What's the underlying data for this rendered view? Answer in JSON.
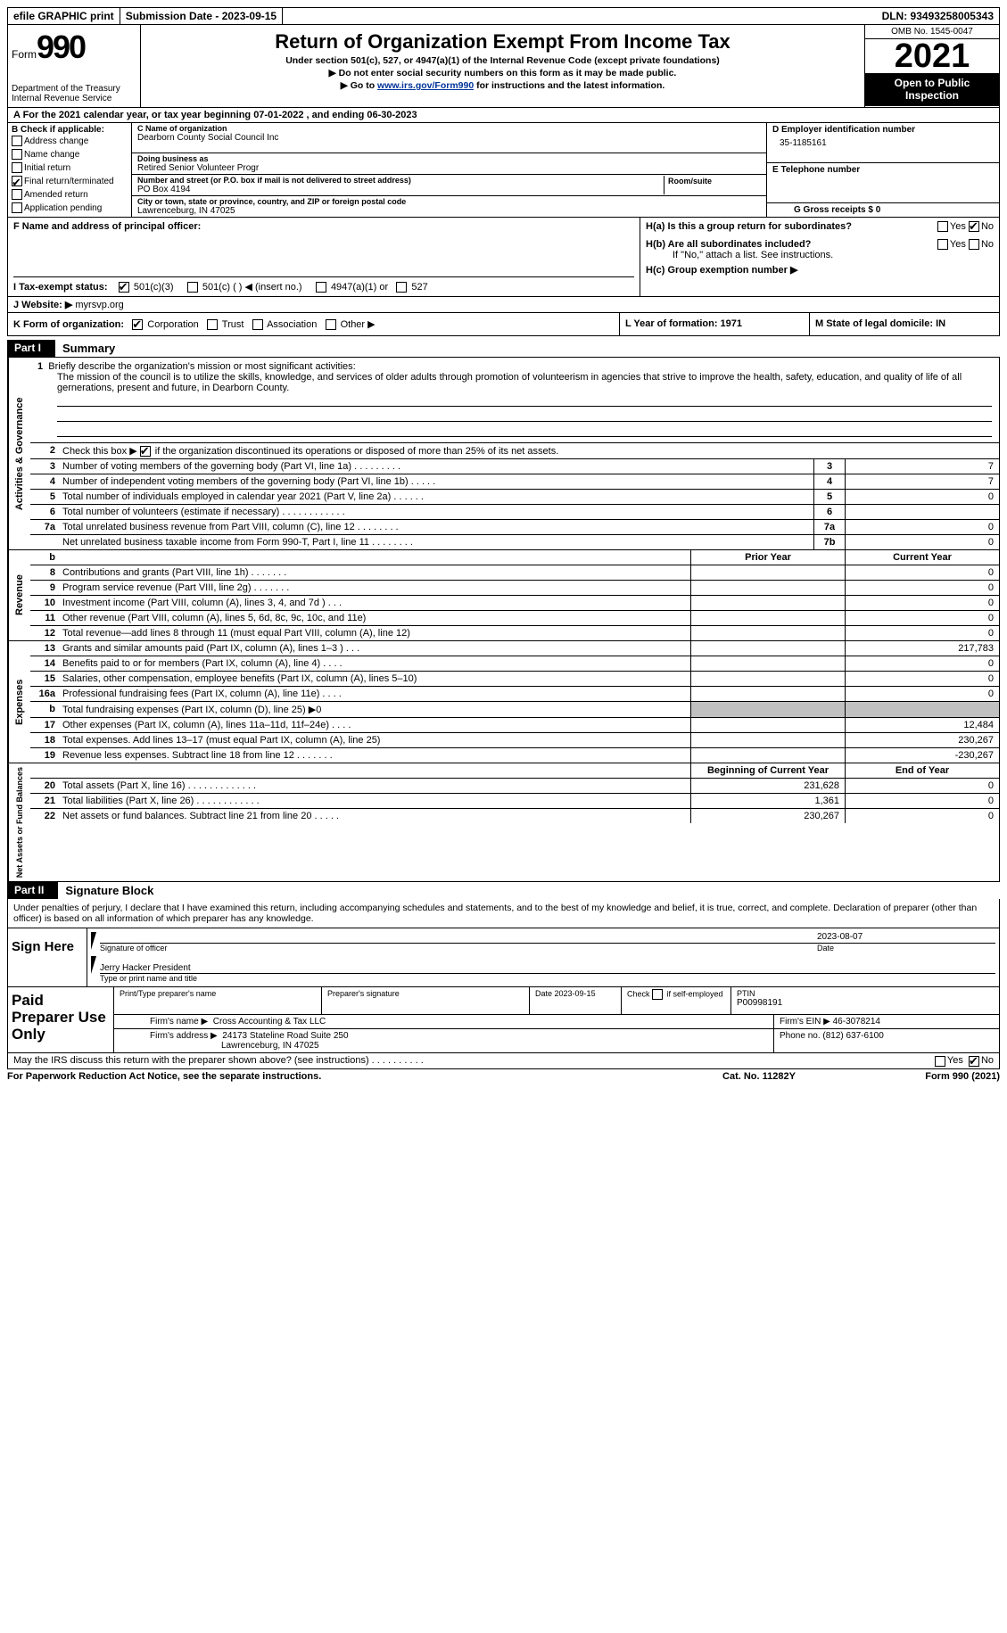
{
  "colors": {
    "black": "#000000",
    "white": "#ffffff",
    "link": "#003399",
    "grey_fill": "#c0c0c0"
  },
  "top_bar": {
    "efile": "efile GRAPHIC print",
    "submission": "Submission Date - 2023-09-15",
    "dln": "DLN: 93493258005343"
  },
  "header": {
    "form_label": "Form",
    "form_number": "990",
    "dept": "Department of the Treasury Internal Revenue Service",
    "title": "Return of Organization Exempt From Income Tax",
    "subtitle": "Under section 501(c), 527, or 4947(a)(1) of the Internal Revenue Code (except private foundations)",
    "note1": "▶ Do not enter social security numbers on this form as it may be made public.",
    "note2_pre": "▶ Go to ",
    "note2_link": "www.irs.gov/Form990",
    "note2_post": " for instructions and the latest information.",
    "omb": "OMB No. 1545-0047",
    "year": "2021",
    "inspection": "Open to Public Inspection"
  },
  "row_a": "A For the 2021 calendar year, or tax year beginning 07-01-2022   , and ending 06-30-2023",
  "section_b": {
    "label": "B Check if applicable:",
    "items": [
      {
        "checked": false,
        "text": "Address change"
      },
      {
        "checked": false,
        "text": "Name change"
      },
      {
        "checked": false,
        "text": "Initial return"
      },
      {
        "checked": true,
        "text": "Final return/terminated"
      },
      {
        "checked": false,
        "text": "Amended return"
      },
      {
        "checked": false,
        "text": "Application pending"
      }
    ]
  },
  "section_c": {
    "name_label": "C Name of organization",
    "name": "Dearborn County Social Council Inc",
    "dba_label": "Doing business as",
    "dba": "Retired Senior Volunteer Progr",
    "street_label": "Number and street (or P.O. box if mail is not delivered to street address)",
    "street": "PO Box 4194",
    "room_label": "Room/suite",
    "city_label": "City or town, state or province, country, and ZIP or foreign postal code",
    "city": "Lawrenceburg, IN  47025"
  },
  "section_d": {
    "ein_label": "D Employer identification number",
    "ein": "35-1185161",
    "phone_label": "E Telephone number",
    "phone": "",
    "gross_label": "G Gross receipts $ 0"
  },
  "section_f": {
    "label": "F  Name and address of principal officer:",
    "value": ""
  },
  "section_h": {
    "ha": "H(a)  Is this a group return for subordinates?",
    "ha_yes": false,
    "ha_no": true,
    "hb": "H(b)  Are all subordinates included?",
    "hb_yes": false,
    "hb_no": false,
    "hb_note": "If \"No,\" attach a list. See instructions.",
    "hc": "H(c)  Group exemption number ▶"
  },
  "section_i": {
    "label": "I  Tax-exempt status:",
    "opts": [
      {
        "checked": true,
        "text": "501(c)(3)"
      },
      {
        "checked": false,
        "text": "501(c) (  ) ◀ (insert no.)"
      },
      {
        "checked": false,
        "text": "4947(a)(1) or"
      },
      {
        "checked": false,
        "text": "527"
      }
    ]
  },
  "section_j": {
    "label": "J  Website: ▶",
    "value": "myrsvp.org"
  },
  "section_k": {
    "label": "K Form of organization:",
    "opts": [
      {
        "checked": true,
        "text": "Corporation"
      },
      {
        "checked": false,
        "text": "Trust"
      },
      {
        "checked": false,
        "text": "Association"
      },
      {
        "checked": false,
        "text": "Other ▶"
      }
    ]
  },
  "section_l": "L Year of formation: 1971",
  "section_m": "M State of legal domicile: IN",
  "part1": {
    "tab": "Part I",
    "title": "Summary"
  },
  "mission": {
    "num": "1",
    "label": "Briefly describe the organization's mission or most significant activities:",
    "text": "The mission of the council is to utilize the skills, knowledge, and services of older adults through promotion of volunteerism in agencies that strive to improve the health, safety, education, and quality of life of all gernerations, present and future, in Dearborn County."
  },
  "line2": {
    "num": "2",
    "text_pre": "Check this box ▶ ",
    "checked": true,
    "text_post": " if the organization discontinued its operations or disposed of more than 25% of its net assets."
  },
  "activities_rows": [
    {
      "n": "3",
      "text": "Number of voting members of the governing body (Part VI, line 1a)  .    .    .    .    .    .    .    .    .",
      "box": "3",
      "val": "7"
    },
    {
      "n": "4",
      "text": "Number of independent voting members of the governing body (Part VI, line 1b)  .    .    .    .    .",
      "box": "4",
      "val": "7"
    },
    {
      "n": "5",
      "text": "Total number of individuals employed in calendar year 2021 (Part V, line 2a)  .    .    .    .    .    .",
      "box": "5",
      "val": "0"
    },
    {
      "n": "6",
      "text": "Total number of volunteers (estimate if necessary)    .    .    .    .    .    .    .    .    .    .    .    .",
      "box": "6",
      "val": ""
    },
    {
      "n": "7a",
      "text": "Total unrelated business revenue from Part VIII, column (C), line 12   .    .    .    .    .    .    .    .",
      "box": "7a",
      "val": "0"
    },
    {
      "n": "",
      "text": "Net unrelated business taxable income from Form 990-T, Part I, line 11  .    .    .    .    .    .    .    .",
      "box": "7b",
      "val": "0"
    }
  ],
  "col_headers": {
    "b": "b",
    "prior": "Prior Year",
    "current": "Current Year"
  },
  "revenue_rows": [
    {
      "n": "8",
      "text": "Contributions and grants (Part VIII, line 1h)   .    .    .    .    .    .    .",
      "prior": "",
      "curr": "0"
    },
    {
      "n": "9",
      "text": "Program service revenue (Part VIII, line 2g)   .    .    .    .    .    .    .",
      "prior": "",
      "curr": "0"
    },
    {
      "n": "10",
      "text": "Investment income (Part VIII, column (A), lines 3, 4, and 7d )   .    .    .",
      "prior": "",
      "curr": "0"
    },
    {
      "n": "11",
      "text": "Other revenue (Part VIII, column (A), lines 5, 6d, 8c, 9c, 10c, and 11e)",
      "prior": "",
      "curr": "0"
    },
    {
      "n": "12",
      "text": "Total revenue—add lines 8 through 11 (must equal Part VIII, column (A), line 12)",
      "prior": "",
      "curr": "0"
    }
  ],
  "expense_rows": [
    {
      "n": "13",
      "text": "Grants and similar amounts paid (Part IX, column (A), lines 1–3 )  .    .    .",
      "prior": "",
      "curr": "217,783"
    },
    {
      "n": "14",
      "text": "Benefits paid to or for members (Part IX, column (A), line 4)  .    .    .    .",
      "prior": "",
      "curr": "0"
    },
    {
      "n": "15",
      "text": "Salaries, other compensation, employee benefits (Part IX, column (A), lines 5–10)",
      "prior": "",
      "curr": "0"
    },
    {
      "n": "16a",
      "text": "Professional fundraising fees (Part IX, column (A), line 11e)    .    .    .    .",
      "prior": "",
      "curr": "0"
    },
    {
      "n": "b",
      "text": "Total fundraising expenses (Part IX, column (D), line 25) ▶0",
      "prior": "grey",
      "curr": "grey"
    },
    {
      "n": "17",
      "text": "Other expenses (Part IX, column (A), lines 11a–11d, 11f–24e)   .    .    .    .",
      "prior": "",
      "curr": "12,484"
    },
    {
      "n": "18",
      "text": "Total expenses. Add lines 13–17 (must equal Part IX, column (A), line 25)",
      "prior": "",
      "curr": "230,267"
    },
    {
      "n": "19",
      "text": "Revenue less expenses. Subtract line 18 from line 12  .    .    .    .    .    .    .",
      "prior": "",
      "curr": "-230,267"
    }
  ],
  "net_headers": {
    "begin": "Beginning of Current Year",
    "end": "End of Year"
  },
  "net_rows": [
    {
      "n": "20",
      "text": "Total assets (Part X, line 16)  .    .    .    .    .    .    .    .    .    .    .    .    .",
      "prior": "231,628",
      "curr": "0"
    },
    {
      "n": "21",
      "text": "Total liabilities (Part X, line 26)  .    .    .    .    .    .    .    .    .    .    .    .",
      "prior": "1,361",
      "curr": "0"
    },
    {
      "n": "22",
      "text": "Net assets or fund balances. Subtract line 21 from line 20   .    .    .    .    .",
      "prior": "230,267",
      "curr": "0"
    }
  ],
  "part2": {
    "tab": "Part II",
    "title": "Signature Block"
  },
  "penalties": "Under penalties of perjury, I declare that I have examined this return, including accompanying schedules and statements, and to the best of my knowledge and belief, it is true, correct, and complete. Declaration of preparer (other than officer) is based on all information of which preparer has any knowledge.",
  "sign": {
    "left": "Sign Here",
    "sig_officer": "Signature of officer",
    "date": "2023-08-07",
    "date_label": "Date",
    "name": "Jerry Hacker President",
    "name_label": "Type or print name and title"
  },
  "paid": {
    "left": "Paid Preparer Use Only",
    "r1": {
      "c1": "Print/Type preparer's name",
      "v1": "",
      "c2": "Preparer's signature",
      "v2": "",
      "c3": "Date",
      "v3": "2023-09-15",
      "c4_pre": "Check ",
      "c4_post": " if self-employed",
      "c4_checked": false,
      "c5": "PTIN",
      "v5": "P00998191"
    },
    "r2": {
      "label": "Firm's name    ▶",
      "value": "Cross Accounting & Tax LLC",
      "ein_label": "Firm's EIN ▶",
      "ein": "46-3078214"
    },
    "r3": {
      "label": "Firm's address ▶",
      "value1": "24173 Stateline Road Suite 250",
      "value2": "Lawrenceburg, IN  47025",
      "phone_label": "Phone no.",
      "phone": "(812) 637-6100"
    }
  },
  "discuss": {
    "text": "May the IRS discuss this return with the preparer shown above? (see instructions)    .    .    .    .    .    .    .    .    .    .",
    "yes": false,
    "no": true
  },
  "footer": {
    "left": "For Paperwork Reduction Act Notice, see the separate instructions.",
    "center": "Cat. No. 11282Y",
    "right": "Form 990 (2021)"
  },
  "vert_labels": {
    "activities": "Activities & Governance",
    "revenue": "Revenue",
    "expenses": "Expenses",
    "net": "Net Assets or Fund Balances"
  }
}
